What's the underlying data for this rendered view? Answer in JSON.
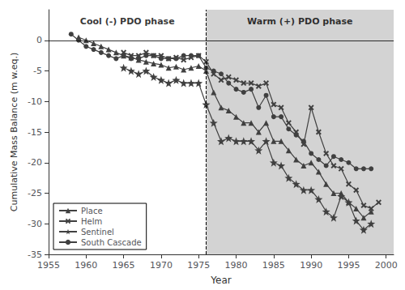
{
  "chart_data": {
    "type": "line",
    "xlabel": "Year",
    "ylabel": "Cumulative Mass Balance (m w.eq.)",
    "xlim": [
      1955,
      2001
    ],
    "xticks": [
      1955,
      1960,
      1965,
      1970,
      1975,
      1980,
      1985,
      1990,
      1995,
      2000
    ],
    "ylim": [
      -35,
      5
    ],
    "yticks": [
      0,
      -5,
      -10,
      -15,
      -20,
      -25,
      -30,
      -35
    ],
    "grid": false,
    "legend": "lower left",
    "series": [
      {
        "name": "Place",
        "color": "#404040",
        "marker": "triangle",
        "x": [
          1959,
          1960,
          1961,
          1962,
          1963,
          1964,
          1965,
          1966,
          1967,
          1968,
          1969,
          1970,
          1971,
          1972,
          1973,
          1974,
          1975,
          1976,
          1977,
          1978,
          1979,
          1980,
          1981,
          1982,
          1983,
          1984,
          1985,
          1986,
          1987,
          1988,
          1989,
          1990,
          1991,
          1992,
          1993,
          1994,
          1995,
          1996,
          1997,
          1998
        ],
        "values": [
          0.5,
          0.0,
          -0.5,
          -1.0,
          -1.5,
          -2.0,
          -2.5,
          -2.8,
          -3.2,
          -3.5,
          -3.8,
          -4.0,
          -4.5,
          -4.3,
          -4.8,
          -4.5,
          -4.2,
          -5.0,
          -8.5,
          -11.0,
          -11.5,
          -12.5,
          -13.5,
          -13.5,
          -15.0,
          -13.5,
          -16.5,
          -16.5,
          -18.0,
          -19.5,
          -20.5,
          -20.0,
          -21.5,
          -23.5,
          -25.0,
          -25.0,
          -26.5,
          -27.5,
          -29.0,
          -28.0
        ]
      },
      {
        "name": "Helm",
        "color": "#404040",
        "marker": "x",
        "x": [
          1965,
          1966,
          1967,
          1968,
          1969,
          1970,
          1971,
          1972,
          1973,
          1974,
          1975,
          1976,
          1977,
          1978,
          1979,
          1980,
          1981,
          1982,
          1983,
          1984,
          1985,
          1986,
          1987,
          1988,
          1989,
          1990,
          1991,
          1992,
          1993,
          1994,
          1995,
          1996,
          1997,
          1998,
          1999
        ],
        "values": [
          -2.0,
          -2.5,
          -2.5,
          -2.0,
          -2.5,
          -2.5,
          -3.0,
          -2.8,
          -3.2,
          -2.8,
          -2.5,
          -3.5,
          -5.5,
          -6.5,
          -6.0,
          -6.5,
          -7.0,
          -7.0,
          -7.5,
          -7.0,
          -10.5,
          -11.0,
          -13.5,
          -15.0,
          -17.0,
          -11.0,
          -15.0,
          -18.5,
          -20.5,
          -21.0,
          -23.5,
          -24.5,
          -27.0,
          -27.5,
          -26.5
        ]
      },
      {
        "name": "Sentinel",
        "color": "#404040",
        "marker": "star",
        "x": [
          1965,
          1966,
          1967,
          1968,
          1969,
          1970,
          1971,
          1972,
          1973,
          1974,
          1975,
          1976,
          1977,
          1978,
          1979,
          1980,
          1981,
          1982,
          1983,
          1984,
          1985,
          1986,
          1987,
          1988,
          1989,
          1990,
          1991,
          1992,
          1993,
          1994,
          1995,
          1996,
          1997,
          1998
        ],
        "values": [
          -4.5,
          -5.0,
          -5.5,
          -5.0,
          -6.0,
          -6.5,
          -7.0,
          -6.5,
          -7.0,
          -7.0,
          -7.0,
          -10.5,
          -13.5,
          -16.5,
          -16.0,
          -16.5,
          -16.5,
          -16.5,
          -18.0,
          -16.5,
          -20.0,
          -20.5,
          -22.5,
          -23.5,
          -24.5,
          -24.5,
          -26.0,
          -28.0,
          -29.0,
          -25.5,
          -26.5,
          -29.5,
          -31.0,
          -30.0
        ]
      },
      {
        "name": "South Cascade",
        "color": "#404040",
        "marker": "circle",
        "x": [
          1958,
          1959,
          1960,
          1961,
          1962,
          1963,
          1964,
          1965,
          1966,
          1967,
          1968,
          1969,
          1970,
          1971,
          1972,
          1973,
          1974,
          1975,
          1976,
          1977,
          1978,
          1979,
          1980,
          1981,
          1982,
          1983,
          1984,
          1985,
          1986,
          1987,
          1988,
          1989,
          1990,
          1991,
          1992,
          1993,
          1994,
          1995,
          1996,
          1997,
          1998
        ],
        "values": [
          1.0,
          0.0,
          -1.0,
          -1.5,
          -2.0,
          -2.5,
          -3.0,
          -2.5,
          -3.0,
          -3.0,
          -2.5,
          -2.5,
          -3.0,
          -3.0,
          -3.0,
          -2.5,
          -2.5,
          -2.5,
          -4.5,
          -5.0,
          -5.5,
          -7.0,
          -8.0,
          -8.5,
          -8.0,
          -11.0,
          -9.0,
          -12.5,
          -12.5,
          -14.5,
          -15.5,
          -16.5,
          -18.5,
          -19.5,
          -20.5,
          -19.0,
          -19.5,
          -20.0,
          -21.0,
          -21.0,
          -21.0
        ]
      }
    ],
    "shaded_region": {
      "x0": 1976,
      "x1": 2001,
      "color": "#d3d3d3"
    },
    "vlines": [
      {
        "x": 1976,
        "line_style": "dashed"
      }
    ],
    "hlines": [
      {
        "y": 0,
        "line_style": "solid"
      }
    ],
    "annotations": [
      {
        "text": "Cool (-) PDO phase",
        "x": 1965.5,
        "y": 3.8
      },
      {
        "text": "Warm (+) PDO phase",
        "x": 1988.5,
        "y": 3.8
      }
    ]
  }
}
